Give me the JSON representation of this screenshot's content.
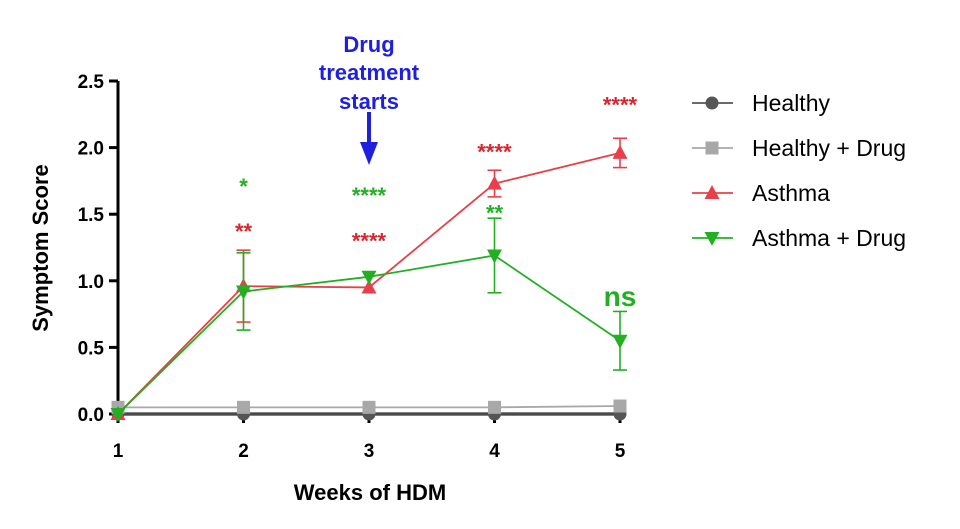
{
  "chart_data": {
    "type": "line",
    "title": "",
    "xlabel": "Weeks of HDM",
    "ylabel": "Symptom Score",
    "x": [
      1,
      2,
      3,
      4,
      5
    ],
    "x_tick_labels": [
      "1",
      "2",
      "3",
      "4",
      "5"
    ],
    "ylim": [
      0,
      2.5
    ],
    "y_ticks": [
      0,
      0.5,
      1.0,
      1.5,
      2.0,
      2.5
    ],
    "y_tick_labels": [
      "0.0",
      "0.5",
      "1.0",
      "1.5",
      "2.0",
      "2.5"
    ],
    "grid": false,
    "legend_position": "right",
    "series": [
      {
        "name": "Healthy",
        "color": "#555555",
        "marker": "circle",
        "values": [
          0.0,
          0.0,
          0.0,
          0.0,
          0.0
        ],
        "errors": [
          0,
          0,
          0,
          0,
          0
        ]
      },
      {
        "name": "Healthy + Drug",
        "color": "#a8a8a8",
        "marker": "square",
        "values": [
          0.05,
          0.05,
          0.05,
          0.05,
          0.06
        ],
        "errors": [
          0,
          0,
          0,
          0,
          0
        ]
      },
      {
        "name": "Asthma",
        "color": "#e8404a",
        "marker": "triangle-up",
        "values": [
          0.0,
          0.96,
          0.95,
          1.73,
          1.96
        ],
        "errors": [
          0,
          0.27,
          0,
          0.1,
          0.11
        ]
      },
      {
        "name": "Asthma + Drug",
        "color": "#22b022",
        "marker": "triangle-down",
        "values": [
          0.0,
          0.92,
          1.03,
          1.19,
          0.55
        ],
        "errors": [
          0,
          0.29,
          0,
          0.28,
          0.22
        ]
      }
    ],
    "annotations": [
      {
        "text": "*",
        "x": 2,
        "y": 1.72,
        "color": "#22b022",
        "size": "normal"
      },
      {
        "text": "**",
        "x": 2,
        "y": 1.38,
        "color": "#d8262e",
        "size": "normal"
      },
      {
        "text": "****",
        "x": 3,
        "y": 1.65,
        "color": "#22b022",
        "size": "normal"
      },
      {
        "text": "****",
        "x": 3,
        "y": 1.31,
        "color": "#d8262e",
        "size": "normal"
      },
      {
        "text": "****",
        "x": 4,
        "y": 1.98,
        "color": "#d8262e",
        "size": "normal"
      },
      {
        "text": "**",
        "x": 4,
        "y": 1.52,
        "color": "#22b022",
        "size": "normal"
      },
      {
        "text": "****",
        "x": 5,
        "y": 2.33,
        "color": "#d8262e",
        "size": "normal"
      },
      {
        "text": "ns",
        "x": 5,
        "y": 0.88,
        "color": "#22b022",
        "size": "big"
      }
    ],
    "event_marker": {
      "x": 3,
      "label_lines": [
        "Drug",
        "treatment",
        "starts"
      ],
      "color": "#1f1fe0"
    }
  }
}
